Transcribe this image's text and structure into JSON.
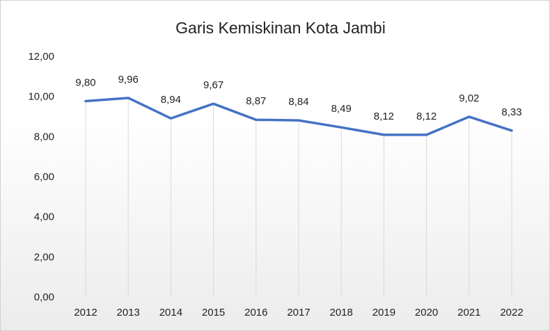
{
  "chart_data": {
    "type": "line",
    "title": "Garis Kemiskinan Kota Jambi",
    "categories": [
      "2012",
      "2013",
      "2014",
      "2015",
      "2016",
      "2017",
      "2018",
      "2019",
      "2020",
      "2021",
      "2022"
    ],
    "values": [
      9.8,
      9.96,
      8.94,
      9.67,
      8.87,
      8.84,
      8.49,
      8.12,
      8.12,
      9.02,
      8.33
    ],
    "value_labels": [
      "9,80",
      "9,96",
      "8,94",
      "9,67",
      "8,87",
      "8,84",
      "8,49",
      "8,12",
      "8,12",
      "9,02",
      "8,33"
    ],
    "color": "#4472c4",
    "ylim": [
      0,
      12
    ],
    "yticks": [
      {
        "value": 0,
        "label": "0,00"
      },
      {
        "value": 2,
        "label": "2,00"
      },
      {
        "value": 4,
        "label": "4,00"
      },
      {
        "value": 6,
        "label": "6,00"
      },
      {
        "value": 8,
        "label": "8,00"
      },
      {
        "value": 10,
        "label": "10,00"
      },
      {
        "value": 12,
        "label": "12,00"
      }
    ],
    "grid": false
  }
}
